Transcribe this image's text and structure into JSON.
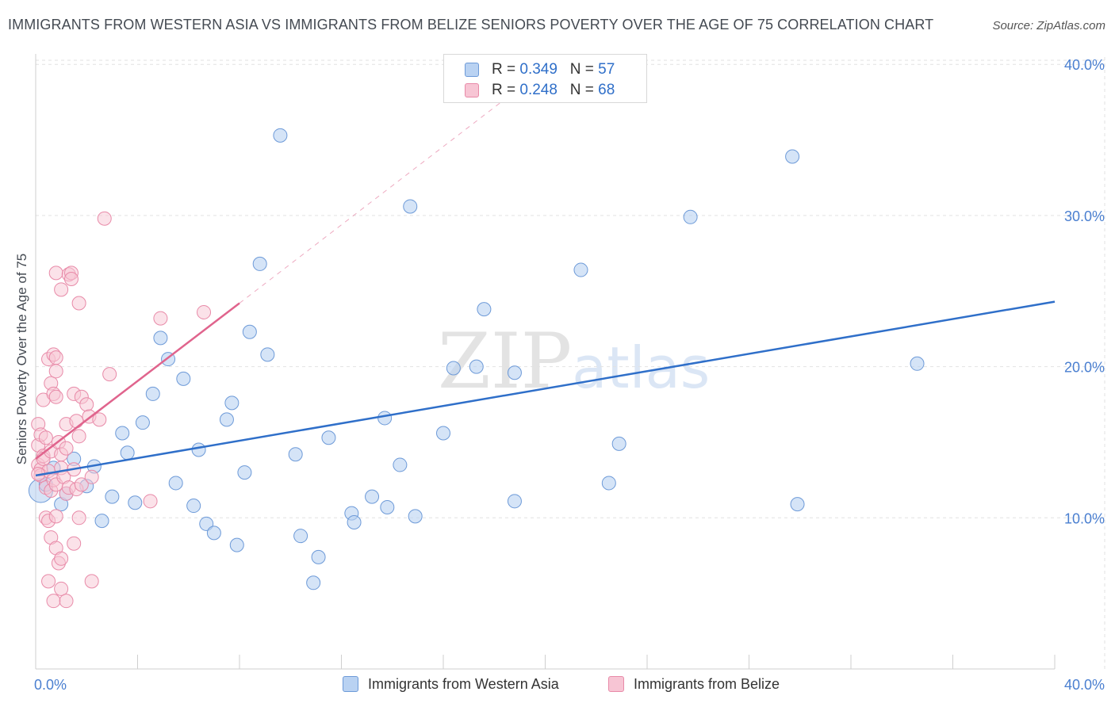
{
  "title": "IMMIGRANTS FROM WESTERN ASIA VS IMMIGRANTS FROM BELIZE SENIORS POVERTY OVER THE AGE OF 75 CORRELATION CHART",
  "source": "Source: ZipAtlas.com",
  "watermark": {
    "zip": "ZIP",
    "atlas": "atlas"
  },
  "legend": {
    "rows": [
      {
        "r_label": "R = ",
        "r_value": "0.349",
        "n_label": "N = ",
        "n_value": "57"
      },
      {
        "r_label": "R = ",
        "r_value": "0.248",
        "n_label": "N = ",
        "n_value": "68"
      }
    ]
  },
  "colors": {
    "blue_fill": "#b9d2f2",
    "blue_stroke": "#6d9ad8",
    "blue_line": "#2f6fc9",
    "pink_fill": "#f7c5d4",
    "pink_stroke": "#e88aa8",
    "pink_line": "#e0648d",
    "grid": "#e2e2e2",
    "tick_text": "#4a7fd0"
  },
  "chart_data": {
    "type": "scatter",
    "title": "IMMIGRANTS FROM WESTERN ASIA VS IMMIGRANTS FROM BELIZE SENIORS POVERTY OVER THE AGE OF 75 CORRELATION CHART",
    "xlabel": "",
    "ylabel": "Seniors Poverty Over the Age of 75",
    "xlim": [
      0,
      40
    ],
    "ylim": [
      0,
      42
    ],
    "x_tick_labels": [
      "0.0%",
      "40.0%"
    ],
    "y_ticks": [
      10,
      20,
      30,
      40
    ],
    "y_tick_labels": [
      "10.0%",
      "20.0%",
      "30.0%",
      "40.0%"
    ],
    "series": [
      {
        "name": "Immigrants from Western Asia",
        "color": "blue",
        "trend": {
          "x": [
            0,
            40
          ],
          "y": [
            12.8,
            24.3
          ],
          "dashed_extension": false
        },
        "points": [
          [
            0.2,
            11.8
          ],
          [
            0.4,
            12.2
          ],
          [
            0.7,
            13.3
          ],
          [
            1.0,
            10.9
          ],
          [
            1.2,
            11.6
          ],
          [
            1.5,
            13.9
          ],
          [
            2.0,
            12.1
          ],
          [
            2.3,
            13.4
          ],
          [
            2.6,
            9.8
          ],
          [
            3.0,
            11.4
          ],
          [
            3.4,
            15.6
          ],
          [
            3.6,
            14.3
          ],
          [
            3.9,
            11.0
          ],
          [
            4.2,
            16.3
          ],
          [
            4.6,
            18.2
          ],
          [
            4.9,
            21.9
          ],
          [
            5.2,
            20.5
          ],
          [
            5.5,
            12.3
          ],
          [
            5.8,
            19.2
          ],
          [
            6.2,
            10.8
          ],
          [
            6.4,
            14.5
          ],
          [
            6.7,
            9.6
          ],
          [
            7.0,
            9.0
          ],
          [
            7.5,
            16.5
          ],
          [
            7.7,
            17.6
          ],
          [
            7.9,
            8.2
          ],
          [
            8.2,
            13.0
          ],
          [
            8.4,
            22.3
          ],
          [
            8.8,
            26.8
          ],
          [
            9.1,
            20.8
          ],
          [
            9.6,
            35.3
          ],
          [
            10.2,
            14.2
          ],
          [
            10.4,
            8.8
          ],
          [
            11.1,
            7.4
          ],
          [
            11.5,
            15.3
          ],
          [
            10.9,
            5.7
          ],
          [
            12.4,
            10.3
          ],
          [
            12.5,
            9.7
          ],
          [
            13.2,
            11.4
          ],
          [
            13.7,
            16.6
          ],
          [
            13.8,
            10.7
          ],
          [
            14.3,
            13.5
          ],
          [
            14.7,
            30.6
          ],
          [
            14.9,
            10.1
          ],
          [
            16.0,
            15.6
          ],
          [
            16.4,
            19.9
          ],
          [
            17.3,
            20.0
          ],
          [
            17.6,
            23.8
          ],
          [
            18.8,
            19.6
          ],
          [
            18.8,
            11.1
          ],
          [
            21.4,
            26.4
          ],
          [
            22.5,
            12.3
          ],
          [
            22.9,
            14.9
          ],
          [
            25.7,
            29.9
          ],
          [
            29.7,
            33.9
          ],
          [
            29.9,
            10.9
          ],
          [
            34.6,
            20.2
          ]
        ]
      },
      {
        "name": "Immigrants from Belize",
        "color": "pink",
        "trend": {
          "x": [
            0,
            8.0
          ],
          "y": [
            13.9,
            24.2
          ],
          "dashed_x": [
            8.0,
            18.5
          ],
          "dashed_y": [
            24.2,
            37.8
          ]
        },
        "points": [
          [
            0.1,
            16.2
          ],
          [
            0.1,
            14.8
          ],
          [
            0.1,
            13.5
          ],
          [
            0.2,
            13.2
          ],
          [
            0.2,
            12.8
          ],
          [
            0.2,
            15.5
          ],
          [
            0.3,
            17.8
          ],
          [
            0.3,
            14.1
          ],
          [
            0.3,
            13.9
          ],
          [
            0.4,
            15.3
          ],
          [
            0.4,
            12.0
          ],
          [
            0.4,
            10.0
          ],
          [
            0.5,
            20.5
          ],
          [
            0.5,
            13.1
          ],
          [
            0.5,
            9.8
          ],
          [
            0.5,
            5.8
          ],
          [
            0.6,
            18.9
          ],
          [
            0.6,
            14.4
          ],
          [
            0.6,
            8.7
          ],
          [
            0.6,
            11.8
          ],
          [
            0.7,
            20.8
          ],
          [
            0.7,
            18.2
          ],
          [
            0.7,
            12.5
          ],
          [
            0.7,
            4.5
          ],
          [
            0.8,
            26.2
          ],
          [
            0.8,
            20.6
          ],
          [
            0.8,
            19.7
          ],
          [
            0.8,
            18.0
          ],
          [
            0.8,
            12.2
          ],
          [
            0.8,
            10.1
          ],
          [
            0.8,
            8.0
          ],
          [
            0.9,
            15.0
          ],
          [
            0.9,
            7.0
          ],
          [
            1.0,
            14.2
          ],
          [
            1.0,
            13.3
          ],
          [
            1.0,
            7.3
          ],
          [
            1.0,
            5.3
          ],
          [
            1.0,
            25.1
          ],
          [
            1.1,
            12.7
          ],
          [
            1.2,
            16.2
          ],
          [
            1.2,
            14.6
          ],
          [
            1.2,
            11.6
          ],
          [
            1.2,
            4.5
          ],
          [
            1.3,
            26.1
          ],
          [
            1.3,
            12.0
          ],
          [
            1.4,
            26.2
          ],
          [
            1.4,
            25.8
          ],
          [
            1.5,
            18.2
          ],
          [
            1.5,
            13.2
          ],
          [
            1.5,
            8.3
          ],
          [
            1.6,
            16.4
          ],
          [
            1.6,
            11.9
          ],
          [
            1.7,
            15.4
          ],
          [
            1.7,
            10.0
          ],
          [
            1.7,
            24.2
          ],
          [
            1.8,
            18.0
          ],
          [
            1.8,
            12.2
          ],
          [
            2.0,
            17.5
          ],
          [
            2.1,
            16.7
          ],
          [
            2.2,
            12.7
          ],
          [
            2.2,
            5.8
          ],
          [
            2.5,
            16.5
          ],
          [
            2.7,
            29.8
          ],
          [
            2.9,
            19.5
          ],
          [
            4.5,
            11.1
          ],
          [
            4.9,
            23.2
          ],
          [
            6.6,
            23.6
          ],
          [
            0.1,
            12.9
          ]
        ]
      }
    ]
  },
  "bottom_legend": {
    "items": [
      {
        "label": "Immigrants from Western Asia"
      },
      {
        "label": "Immigrants from Belize"
      }
    ]
  }
}
